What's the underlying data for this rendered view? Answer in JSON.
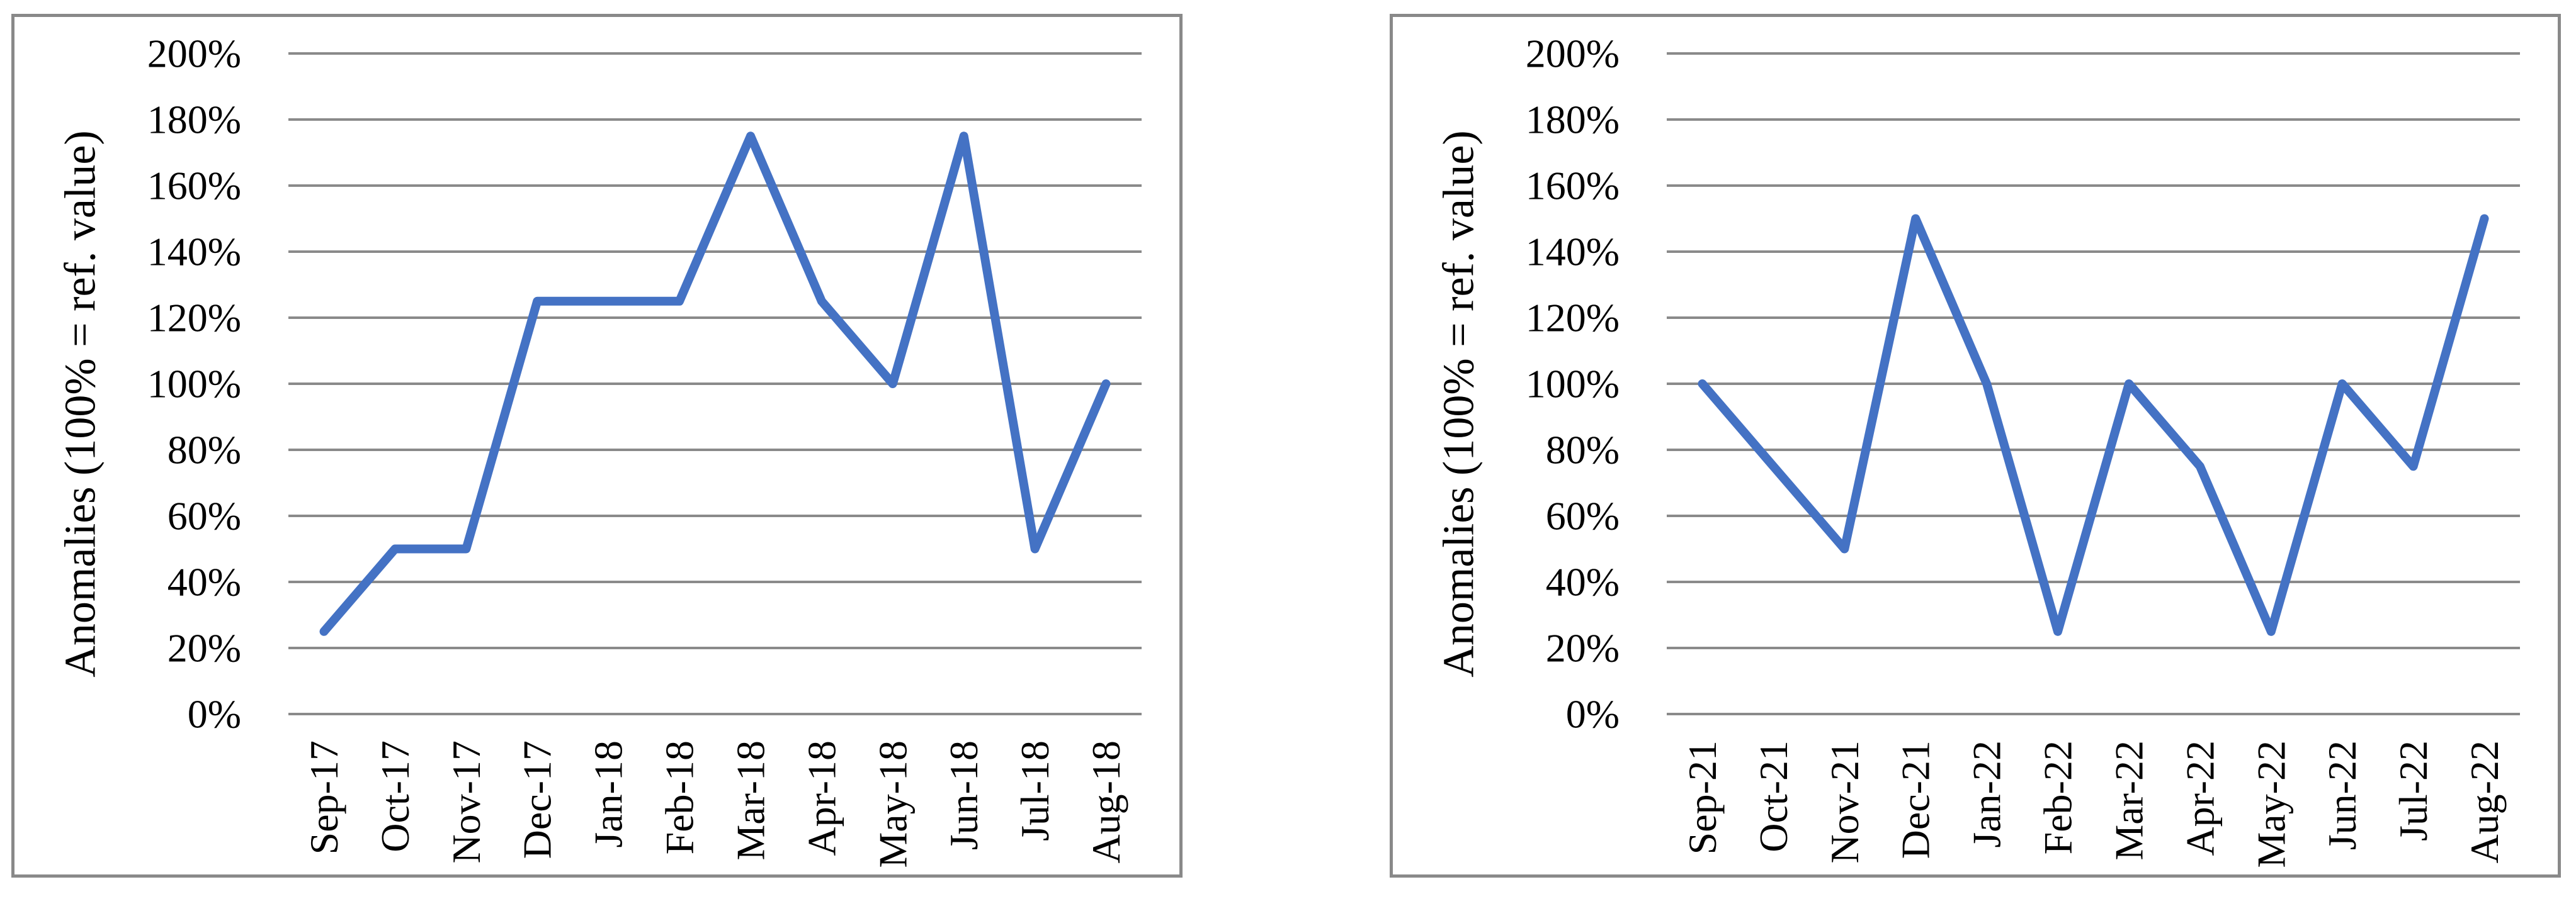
{
  "figure": {
    "description": "Two side-by-side line charts of monthly anomalies relative to a reference value",
    "background": "#FFFFFF"
  },
  "styles": {
    "line_color": "#4472C4",
    "gridline_color": "#8A8A8A",
    "frame_color": "#898989",
    "text_color": "#000000",
    "line_width": 14,
    "gridline_width": 4,
    "frame_width": 5
  },
  "chart_data": [
    {
      "type": "line",
      "title": "",
      "xlabel": "",
      "ylabel": "Anomalies (100% = ref. value)",
      "categories": [
        "Sep-17",
        "Oct-17",
        "Nov-17",
        "Dec-17",
        "Jan-18",
        "Feb-18",
        "Mar-18",
        "Apr-18",
        "May-18",
        "Jun-18",
        "Jul-18",
        "Aug-18"
      ],
      "values": [
        25,
        50,
        50,
        125,
        125,
        125,
        175,
        125,
        100,
        175,
        50,
        100
      ],
      "unit": "%",
      "ylim": [
        0,
        200
      ],
      "ytick_step": 20,
      "ytick_labels": [
        "0%",
        "20%",
        "40%",
        "60%",
        "80%",
        "100%",
        "120%",
        "140%",
        "160%",
        "180%",
        "200%"
      ],
      "grid": true,
      "legend_position": "none",
      "x_label_rotation_deg": -90,
      "line_color": "#4472C4"
    },
    {
      "type": "line",
      "title": "",
      "xlabel": "",
      "ylabel": "Anomalies (100% = ref. value)",
      "categories": [
        "Sep-21",
        "Oct-21",
        "Nov-21",
        "Dec-21",
        "Jan-22",
        "Feb-22",
        "Mar-22",
        "Apr-22",
        "May-22",
        "Jun-22",
        "Jul-22",
        "Aug-22"
      ],
      "values": [
        100,
        75,
        50,
        150,
        100,
        25,
        100,
        75,
        25,
        100,
        75,
        150
      ],
      "unit": "%",
      "ylim": [
        0,
        200
      ],
      "ytick_step": 20,
      "ytick_labels": [
        "0%",
        "20%",
        "40%",
        "60%",
        "80%",
        "100%",
        "120%",
        "140%",
        "160%",
        "180%",
        "200%"
      ],
      "grid": true,
      "legend_position": "none",
      "x_label_rotation_deg": -90,
      "line_color": "#4472C4"
    }
  ]
}
